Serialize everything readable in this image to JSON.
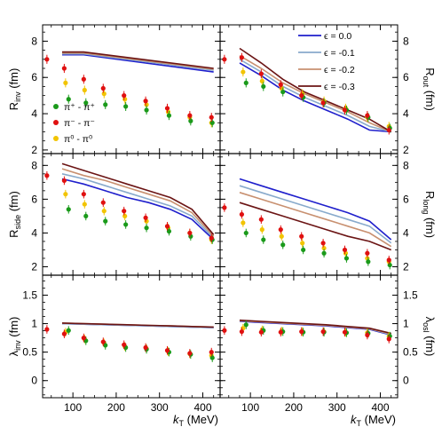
{
  "chart_data": {
    "type": "line",
    "xlabel": "k_T (MeV)",
    "xlim": [
      30,
      440
    ],
    "xticks": [
      100,
      200,
      300,
      400
    ],
    "theory_kT": [
      75,
      125,
      175,
      225,
      275,
      325,
      375,
      425
    ],
    "data_kT": {
      "charged_plus": [
        90,
        130,
        175,
        222,
        270,
        322,
        372,
        422
      ],
      "charged_minus": [
        40,
        80,
        125,
        170,
        218,
        268,
        318,
        370,
        420
      ],
      "neutral": [
        83,
        127,
        172,
        220,
        270,
        320,
        370,
        420
      ]
    },
    "model_legend": [
      {
        "name": "ϵ = 0.0",
        "color": "#1f1fcc"
      },
      {
        "name": "ϵ = -0.1",
        "color": "#88aacc"
      },
      {
        "name": "ϵ = -0.2",
        "color": "#c89070"
      },
      {
        "name": "ϵ = -0.3",
        "color": "#6b1414"
      }
    ],
    "data_legend": [
      {
        "name": "π⁺ - π⁺",
        "color": "#1a9a1a"
      },
      {
        "name": "π⁻ - π⁻",
        "color": "#e01010"
      },
      {
        "name": "π⁰ - π⁰",
        "color": "#f2c400"
      }
    ],
    "panels": [
      {
        "id": "rinv",
        "ylabel": "R_inv (fm)",
        "ylim": [
          1.8,
          8.9
        ],
        "yticks": [
          2,
          4,
          6,
          8
        ],
        "yaxis_side": "left",
        "series": [
          {
            "name": "ϵ = 0.0",
            "x": [
              75,
              125,
              425
            ],
            "y": [
              7.25,
              7.25,
              6.3
            ]
          },
          {
            "name": "ϵ = -0.1",
            "x": [
              75,
              125,
              425
            ],
            "y": [
              7.3,
              7.3,
              6.4
            ]
          },
          {
            "name": "ϵ = -0.2",
            "x": [
              75,
              125,
              425
            ],
            "y": [
              7.35,
              7.35,
              6.45
            ]
          },
          {
            "name": "ϵ = -0.3",
            "x": [
              75,
              125,
              425
            ],
            "y": [
              7.4,
              7.4,
              6.5
            ]
          }
        ],
        "data": {
          "charged_plus": [
            4.8,
            4.6,
            4.5,
            4.4,
            4.2,
            3.9,
            3.6,
            3.5
          ],
          "charged_minus": [
            7.0,
            6.5,
            5.9,
            5.4,
            5.0,
            4.7,
            4.3,
            3.9,
            3.8
          ],
          "neutral": [
            5.7,
            5.3,
            5.1,
            4.8,
            4.5,
            4.1,
            3.8,
            3.5
          ]
        }
      },
      {
        "id": "rout",
        "ylabel": "R_out (fm)",
        "ylim": [
          1.8,
          8.9
        ],
        "yticks": [
          2,
          4,
          6,
          8
        ],
        "yaxis_side": "right",
        "series": [
          {
            "name": "ϵ = 0.0",
            "values": [
              6.8,
              6.1,
              5.3,
              4.7,
              4.2,
              3.7,
              3.1,
              3.0
            ]
          },
          {
            "name": "ϵ = -0.1",
            "values": [
              7.0,
              6.3,
              5.5,
              4.9,
              4.4,
              3.9,
              3.3,
              3.0
            ]
          },
          {
            "name": "ϵ = -0.2",
            "values": [
              7.2,
              6.5,
              5.7,
              5.1,
              4.6,
              4.1,
              3.5,
              3.0
            ]
          },
          {
            "name": "ϵ = -0.3",
            "values": [
              7.6,
              6.8,
              5.9,
              5.2,
              4.7,
              4.2,
              3.7,
              3.0
            ]
          }
        ],
        "data": {
          "charged_plus": [
            5.7,
            5.5,
            5.2,
            4.9,
            4.6,
            4.2,
            3.8,
            3.2
          ],
          "charged_minus": [
            7.0,
            7.1,
            6.2,
            5.6,
            5.0,
            4.6,
            4.2,
            3.9,
            3.1
          ],
          "neutral": [
            6.3,
            5.8,
            5.4,
            5.1,
            4.7,
            4.3,
            3.8,
            3.3
          ]
        }
      },
      {
        "id": "rside",
        "ylabel": "R_side (fm)",
        "ylim": [
          1.5,
          8.7
        ],
        "yticks": [
          2,
          4,
          6,
          8
        ],
        "yaxis_side": "left",
        "series": [
          {
            "name": "ϵ = 0.0",
            "values": [
              7.2,
              6.9,
              6.5,
              6.1,
              5.8,
              5.4,
              4.8,
              3.6
            ]
          },
          {
            "name": "ϵ = -0.1",
            "values": [
              7.5,
              7.2,
              6.8,
              6.4,
              6.0,
              5.6,
              5.0,
              3.7
            ]
          },
          {
            "name": "ϵ = -0.2",
            "values": [
              7.8,
              7.4,
              7.1,
              6.7,
              6.3,
              5.9,
              5.2,
              3.8
            ]
          },
          {
            "name": "ϵ = -0.3",
            "values": [
              8.1,
              7.7,
              7.3,
              6.9,
              6.5,
              6.1,
              5.4,
              3.9
            ]
          }
        ],
        "data": {
          "charged_plus": [
            5.4,
            5.0,
            4.7,
            4.5,
            4.3,
            4.1,
            3.8,
            3.6
          ],
          "charged_minus": [
            7.4,
            7.1,
            6.3,
            5.8,
            5.3,
            4.9,
            4.4,
            4.0,
            3.7
          ],
          "neutral": [
            6.3,
            5.7,
            5.3,
            5.0,
            4.7,
            4.3,
            4.0,
            3.6
          ]
        }
      },
      {
        "id": "rlong",
        "ylabel": "R_long (fm)",
        "ylim": [
          1.5,
          8.7
        ],
        "yticks": [
          2,
          4,
          6,
          8
        ],
        "yaxis_side": "right",
        "series": [
          {
            "name": "ϵ = 0.0",
            "values": [
              7.2,
              6.8,
              6.4,
              6.0,
              5.6,
              5.2,
              4.7,
              3.6
            ]
          },
          {
            "name": "ϵ = -0.1",
            "values": [
              6.8,
              6.4,
              6.0,
              5.6,
              5.2,
              4.8,
              4.4,
              3.4
            ]
          },
          {
            "name": "ϵ = -0.2",
            "values": [
              6.4,
              6.0,
              5.6,
              5.2,
              4.8,
              4.4,
              4.0,
              3.2
            ]
          },
          {
            "name": "ϵ = -0.3",
            "values": [
              5.8,
              5.4,
              5.0,
              4.6,
              4.2,
              3.8,
              3.5,
              3.0
            ]
          }
        ],
        "data": {
          "charged_plus": [
            4.0,
            3.6,
            3.3,
            3.0,
            2.8,
            2.5,
            2.3,
            2.1
          ],
          "charged_minus": [
            5.5,
            5.1,
            4.8,
            4.2,
            3.8,
            3.4,
            3.0,
            2.8,
            2.4
          ],
          "neutral": [
            4.6,
            4.2,
            3.8,
            3.4,
            3.1,
            2.8,
            2.5,
            2.3
          ]
        }
      },
      {
        "id": "linv",
        "ylabel": "λ_inv (fm)",
        "ylim": [
          -0.3,
          1.85
        ],
        "yticks": [
          0,
          0.5,
          1,
          1.5
        ],
        "yaxis_side": "left",
        "series": [
          {
            "name": "ϵ = 0.0",
            "values": [
              1.0,
              0.99,
              0.98,
              0.97,
              0.96,
              0.95,
              0.94,
              0.93
            ]
          },
          {
            "name": "ϵ = -0.1",
            "values": [
              1.0,
              0.99,
              0.98,
              0.97,
              0.96,
              0.95,
              0.94,
              0.93
            ]
          },
          {
            "name": "ϵ = -0.2",
            "values": [
              1.01,
              1.0,
              0.99,
              0.98,
              0.97,
              0.96,
              0.95,
              0.94
            ]
          },
          {
            "name": "ϵ = -0.3",
            "values": [
              1.01,
              1.0,
              0.99,
              0.98,
              0.97,
              0.96,
              0.95,
              0.94
            ]
          }
        ],
        "data": {
          "charged_plus": [
            0.88,
            0.7,
            0.62,
            0.58,
            0.55,
            0.5,
            0.46,
            0.4
          ],
          "charged_minus": [
            0.9,
            0.82,
            0.75,
            0.68,
            0.63,
            0.58,
            0.53,
            0.48,
            0.5
          ],
          "neutral": [
            0.85,
            0.73,
            0.66,
            0.6,
            0.56,
            0.51,
            0.47,
            0.44
          ]
        }
      },
      {
        "id": "losl",
        "ylabel": "λ_osl (fm)",
        "ylim": [
          -0.3,
          1.85
        ],
        "yticks": [
          0,
          0.5,
          1,
          1.5
        ],
        "yaxis_side": "right",
        "series": [
          {
            "name": "ϵ = 0.0",
            "values": [
              1.04,
              1.02,
              1.0,
              0.98,
              0.96,
              0.93,
              0.9,
              0.8
            ]
          },
          {
            "name": "ϵ = -0.1",
            "values": [
              1.05,
              1.03,
              1.01,
              0.99,
              0.97,
              0.94,
              0.91,
              0.81
            ]
          },
          {
            "name": "ϵ = -0.2",
            "values": [
              1.05,
              1.03,
              1.01,
              0.99,
              0.97,
              0.94,
              0.91,
              0.82
            ]
          },
          {
            "name": "ϵ = -0.3",
            "values": [
              1.06,
              1.04,
              1.02,
              1.0,
              0.98,
              0.95,
              0.92,
              0.83
            ]
          }
        ],
        "data": {
          "charged_plus": [
            0.98,
            0.88,
            0.86,
            0.85,
            0.85,
            0.84,
            0.83,
            0.78
          ],
          "charged_minus": [
            0.88,
            0.86,
            0.85,
            0.85,
            0.86,
            0.86,
            0.85,
            0.8,
            0.73
          ],
          "neutral": [
            0.92,
            0.89,
            0.87,
            0.86,
            0.86,
            0.85,
            0.84,
            0.78
          ]
        }
      }
    ]
  }
}
